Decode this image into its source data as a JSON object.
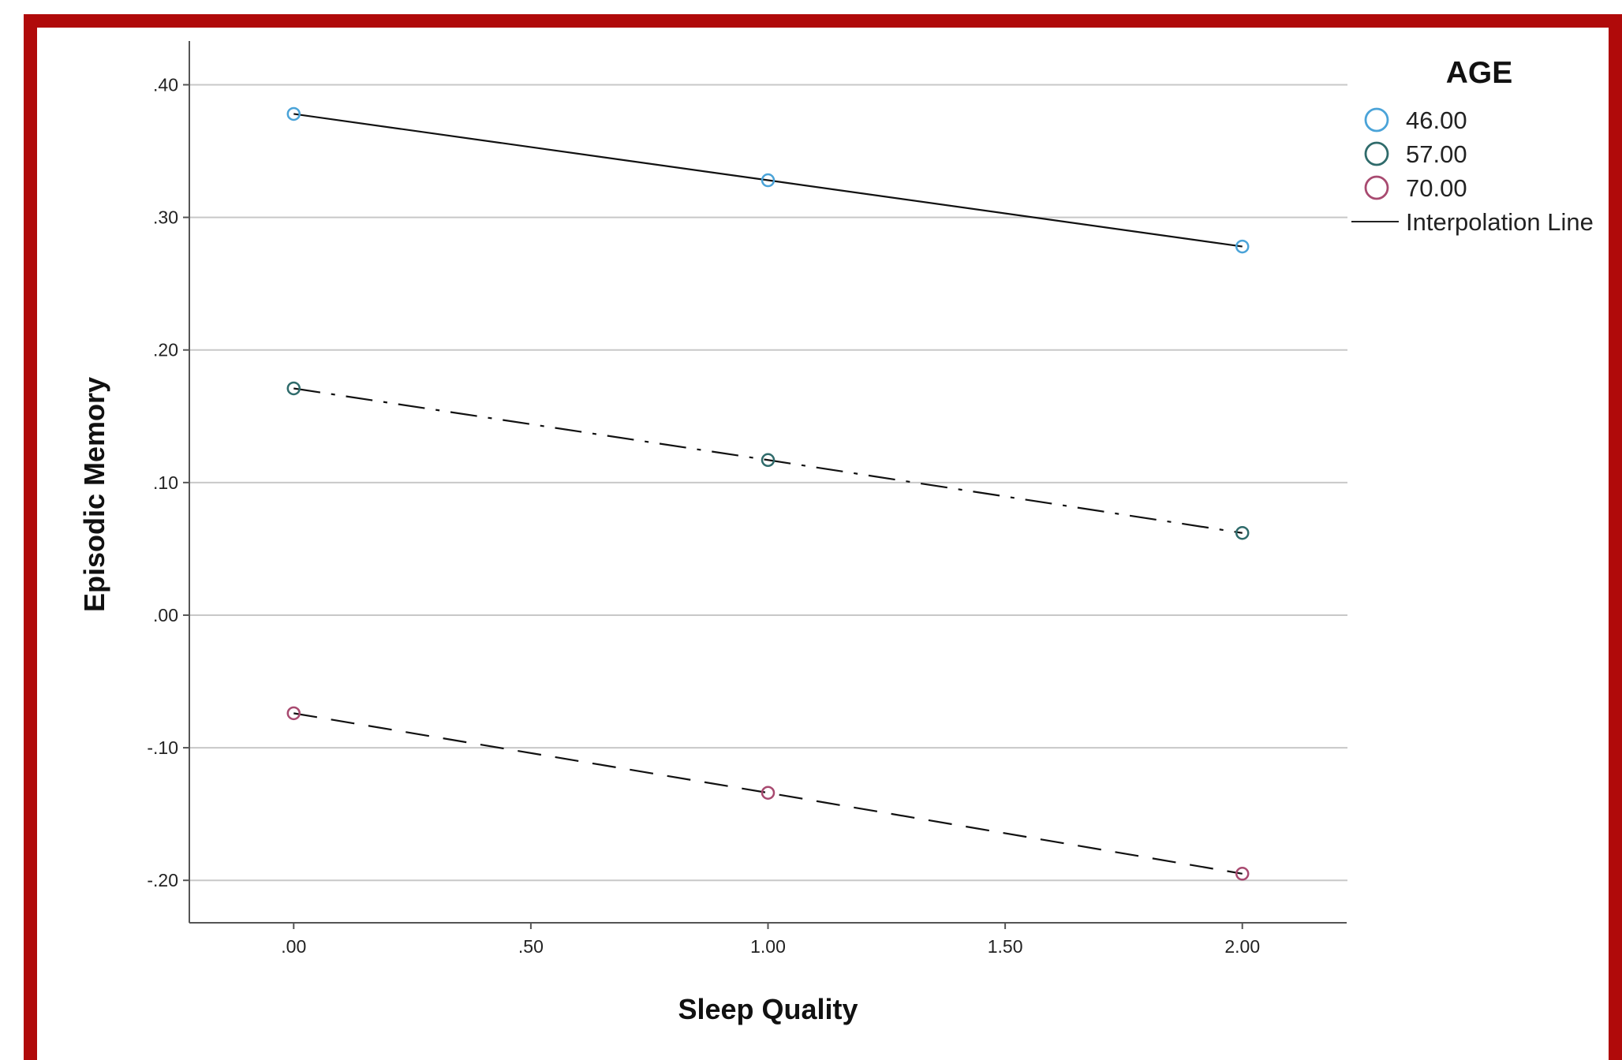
{
  "chart_data": {
    "type": "line",
    "xlabel": "Sleep Quality",
    "ylabel": "Episodic Memory",
    "xlim": [
      -0.22,
      2.22
    ],
    "ylim": [
      -0.232,
      0.433
    ],
    "xticks": [
      0,
      0.5,
      1,
      1.5,
      2
    ],
    "xtick_labels": [
      ".00",
      ".50",
      "1.00",
      "1.50",
      "2.00"
    ],
    "yticks": [
      -0.2,
      -0.1,
      0,
      0.1,
      0.2,
      0.3,
      0.4
    ],
    "ytick_labels": [
      "-.20",
      "-.10",
      ".00",
      ".10",
      ".20",
      ".30",
      ".40"
    ],
    "grid": "horizontal",
    "legend": {
      "title": "AGE",
      "position": "right",
      "line_label": "Interpolation Line"
    },
    "x": [
      0,
      1,
      2
    ],
    "series": [
      {
        "name": "46.00",
        "values": [
          0.378,
          0.328,
          0.278
        ],
        "color": "#4aa3d8",
        "line_style": "solid"
      },
      {
        "name": "57.00",
        "values": [
          0.171,
          0.117,
          0.062
        ],
        "color": "#2f6b6b",
        "line_style": "dashdot"
      },
      {
        "name": "70.00",
        "values": [
          -0.074,
          -0.134,
          -0.195
        ],
        "color": "#a84a70",
        "line_style": "dashed"
      }
    ]
  }
}
